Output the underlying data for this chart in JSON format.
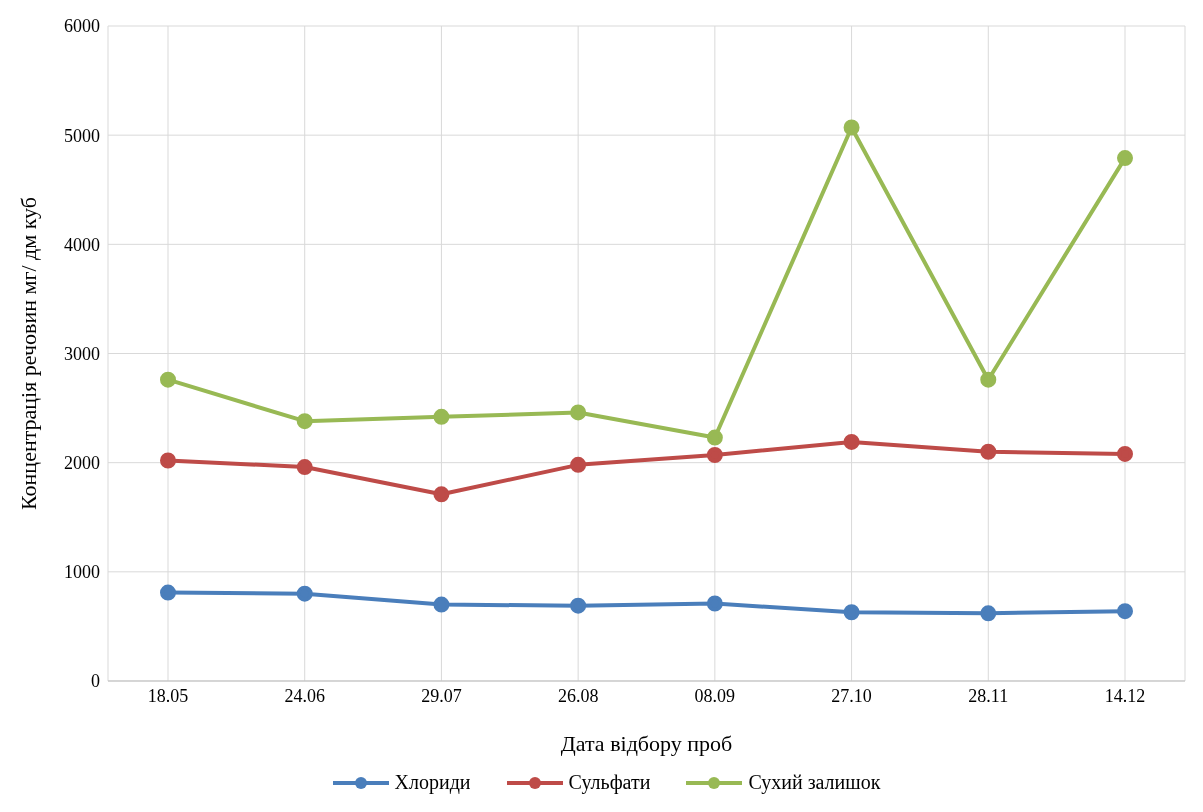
{
  "chart_data": {
    "type": "line",
    "xlabel": "Дата відбору проб",
    "ylabel": "Концентрація речовин мг/ дм куб",
    "categories": [
      "18.05",
      "24.06",
      "29.07",
      "26.08",
      "08.09",
      "27.10",
      "28.11",
      "14.12"
    ],
    "series": [
      {
        "name": "Хлориди",
        "color": "#4a7ebb",
        "values": [
          810,
          800,
          700,
          690,
          710,
          630,
          620,
          640
        ]
      },
      {
        "name": "Сульфати",
        "color": "#be4b48",
        "values": [
          2020,
          1960,
          1710,
          1980,
          2070,
          2190,
          2100,
          2080
        ]
      },
      {
        "name": "Сухий залишок",
        "color": "#98b954",
        "values": [
          2760,
          2380,
          2420,
          2460,
          2230,
          5070,
          2760,
          4790
        ]
      }
    ],
    "ylim": [
      0,
      6000
    ],
    "yticks": [
      0,
      1000,
      2000,
      3000,
      4000,
      5000,
      6000
    ],
    "grid": true,
    "legend": "bottom",
    "marker": "circle",
    "line_style": "solid"
  }
}
